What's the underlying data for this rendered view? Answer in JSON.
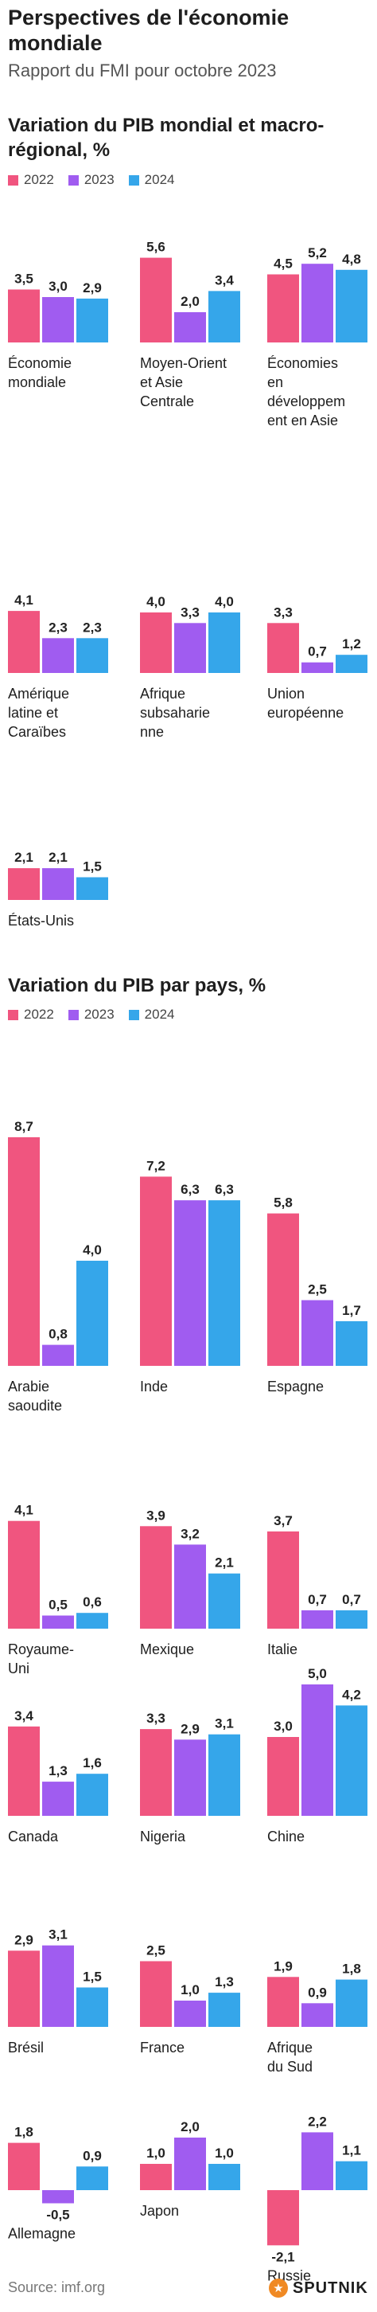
{
  "header": {
    "title": "Perspectives de l'économie mondiale",
    "subtitle": "Rapport du FMI pour octobre 2023"
  },
  "colors": {
    "2022": "#f0557f",
    "2023": "#a05cf0",
    "2024": "#35a6ea"
  },
  "chart_data": [
    {
      "type": "bar",
      "title": "Variation du PIB mondial et macro-régional, %",
      "legend": [
        "2022",
        "2023",
        "2024"
      ],
      "panels": [
        {
          "label": "Économie mondiale",
          "values": [
            3.5,
            3.0,
            2.9
          ],
          "value_labels": [
            "3,5",
            "3,0",
            "2,9"
          ]
        },
        {
          "label": "Moyen-Orient et Asie Centrale",
          "values": [
            5.6,
            2.0,
            3.4
          ],
          "value_labels": [
            "5,6",
            "2,0",
            "3,4"
          ]
        },
        {
          "label": "Économies en développement en Asie",
          "values": [
            4.5,
            5.2,
            4.8
          ],
          "value_labels": [
            "4,5",
            "5,2",
            "4,8"
          ]
        },
        {
          "label": "Amérique latine et Caraïbes",
          "values": [
            4.1,
            2.3,
            2.3
          ],
          "value_labels": [
            "4,1",
            "2,3",
            "2,3"
          ]
        },
        {
          "label": "Afrique subsaharienne",
          "values": [
            4.0,
            3.3,
            4.0
          ],
          "value_labels": [
            "4,0",
            "3,3",
            "4,0"
          ]
        },
        {
          "label": "Union européenne",
          "values": [
            3.3,
            0.7,
            1.2
          ],
          "value_labels": [
            "3,3",
            "0,7",
            "1,2"
          ]
        },
        {
          "label": "États-Unis",
          "values": [
            2.1,
            2.1,
            1.5
          ],
          "value_labels": [
            "2,1",
            "2,1",
            "1,5"
          ]
        }
      ]
    },
    {
      "type": "bar",
      "title": "Variation du PIB par pays, %",
      "legend": [
        "2022",
        "2023",
        "2024"
      ],
      "panels": [
        {
          "label": "Arabie saoudite",
          "values": [
            8.7,
            0.8,
            4.0
          ],
          "value_labels": [
            "8,7",
            "0,8",
            "4,0"
          ]
        },
        {
          "label": "Inde",
          "values": [
            7.2,
            6.3,
            6.3
          ],
          "value_labels": [
            "7,2",
            "6,3",
            "6,3"
          ]
        },
        {
          "label": "Espagne",
          "values": [
            5.8,
            2.5,
            1.7
          ],
          "value_labels": [
            "5,8",
            "2,5",
            "1,7"
          ]
        },
        {
          "label": "Royaume-Uni",
          "values": [
            4.1,
            0.5,
            0.6
          ],
          "value_labels": [
            "4,1",
            "0,5",
            "0,6"
          ]
        },
        {
          "label": "Mexique",
          "values": [
            3.9,
            3.2,
            2.1
          ],
          "value_labels": [
            "3,9",
            "3,2",
            "2,1"
          ]
        },
        {
          "label": "Italie",
          "values": [
            3.7,
            0.7,
            0.7
          ],
          "value_labels": [
            "3,7",
            "0,7",
            "0,7"
          ]
        },
        {
          "label": "Canada",
          "values": [
            3.4,
            1.3,
            1.6
          ],
          "value_labels": [
            "3,4",
            "1,3",
            "1,6"
          ]
        },
        {
          "label": "Nigeria",
          "values": [
            3.3,
            2.9,
            3.1
          ],
          "value_labels": [
            "3,3",
            "2,9",
            "3,1"
          ]
        },
        {
          "label": "Chine",
          "values": [
            3.0,
            5.0,
            4.2
          ],
          "value_labels": [
            "3,0",
            "5,0",
            "4,2"
          ]
        },
        {
          "label": "Brésil",
          "values": [
            2.9,
            3.1,
            1.5
          ],
          "value_labels": [
            "2,9",
            "3,1",
            "1,5"
          ]
        },
        {
          "label": "France",
          "values": [
            2.5,
            1.0,
            1.3
          ],
          "value_labels": [
            "2,5",
            "1,0",
            "1,3"
          ]
        },
        {
          "label": "Afrique du Sud",
          "values": [
            1.9,
            0.9,
            1.8
          ],
          "value_labels": [
            "1,9",
            "0,9",
            "1,8"
          ]
        },
        {
          "label": "Allemagne",
          "values": [
            1.8,
            -0.5,
            0.9
          ],
          "value_labels": [
            "1,8",
            "-0,5",
            "0,9"
          ]
        },
        {
          "label": "Japon",
          "values": [
            1.0,
            2.0,
            1.0
          ],
          "value_labels": [
            "1,0",
            "2,0",
            "1,0"
          ]
        },
        {
          "label": "Russie",
          "values": [
            -2.1,
            2.2,
            1.1
          ],
          "value_labels": [
            "-2,1",
            "2,2",
            "1,1"
          ]
        }
      ]
    }
  ],
  "footer": {
    "source": "Source: imf.org",
    "logo_text": "SPUTNIK",
    "logo_icon": "sputnik-icon"
  }
}
